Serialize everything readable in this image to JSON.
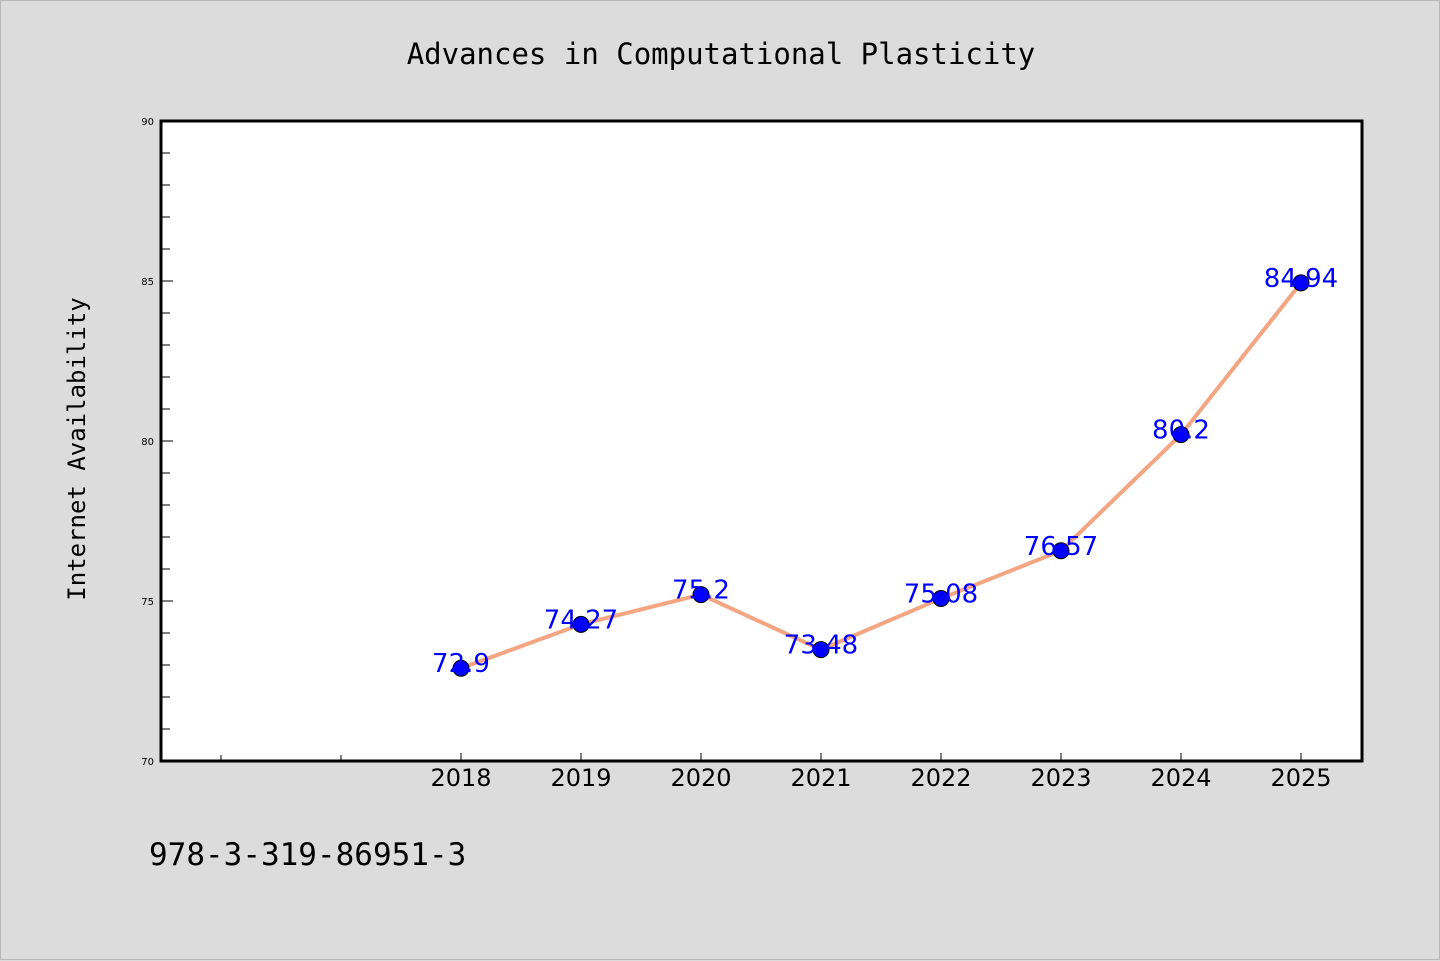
{
  "chart_data": {
    "type": "line",
    "title": "Advances in Computational Plasticity",
    "xlabel": "",
    "ylabel": "Internet Availability",
    "x": [
      "2018",
      "2019",
      "2020",
      "2021",
      "2022",
      "2023",
      "2024",
      "2025"
    ],
    "series": [
      {
        "values": [
          72.9,
          74.27,
          75.2,
          73.48,
          75.08,
          76.57,
          80.2,
          84.94
        ],
        "data_labels": [
          "72.9",
          "74.27",
          "75.2",
          "73.48",
          "75.08",
          "76.57",
          "80.2",
          "84.94"
        ]
      }
    ],
    "ylim": [
      70,
      90
    ],
    "yticks": [
      "70",
      "75",
      "80",
      "85",
      "90"
    ],
    "grid": false,
    "legend": "none",
    "colors": {
      "line": "#f4a582",
      "marker": "#0000ff",
      "data_label": "#0000ff",
      "plot_background": "#ffffff",
      "figure_background": "#dcdcdc"
    }
  },
  "footer_text": "978-3-319-86951-3"
}
